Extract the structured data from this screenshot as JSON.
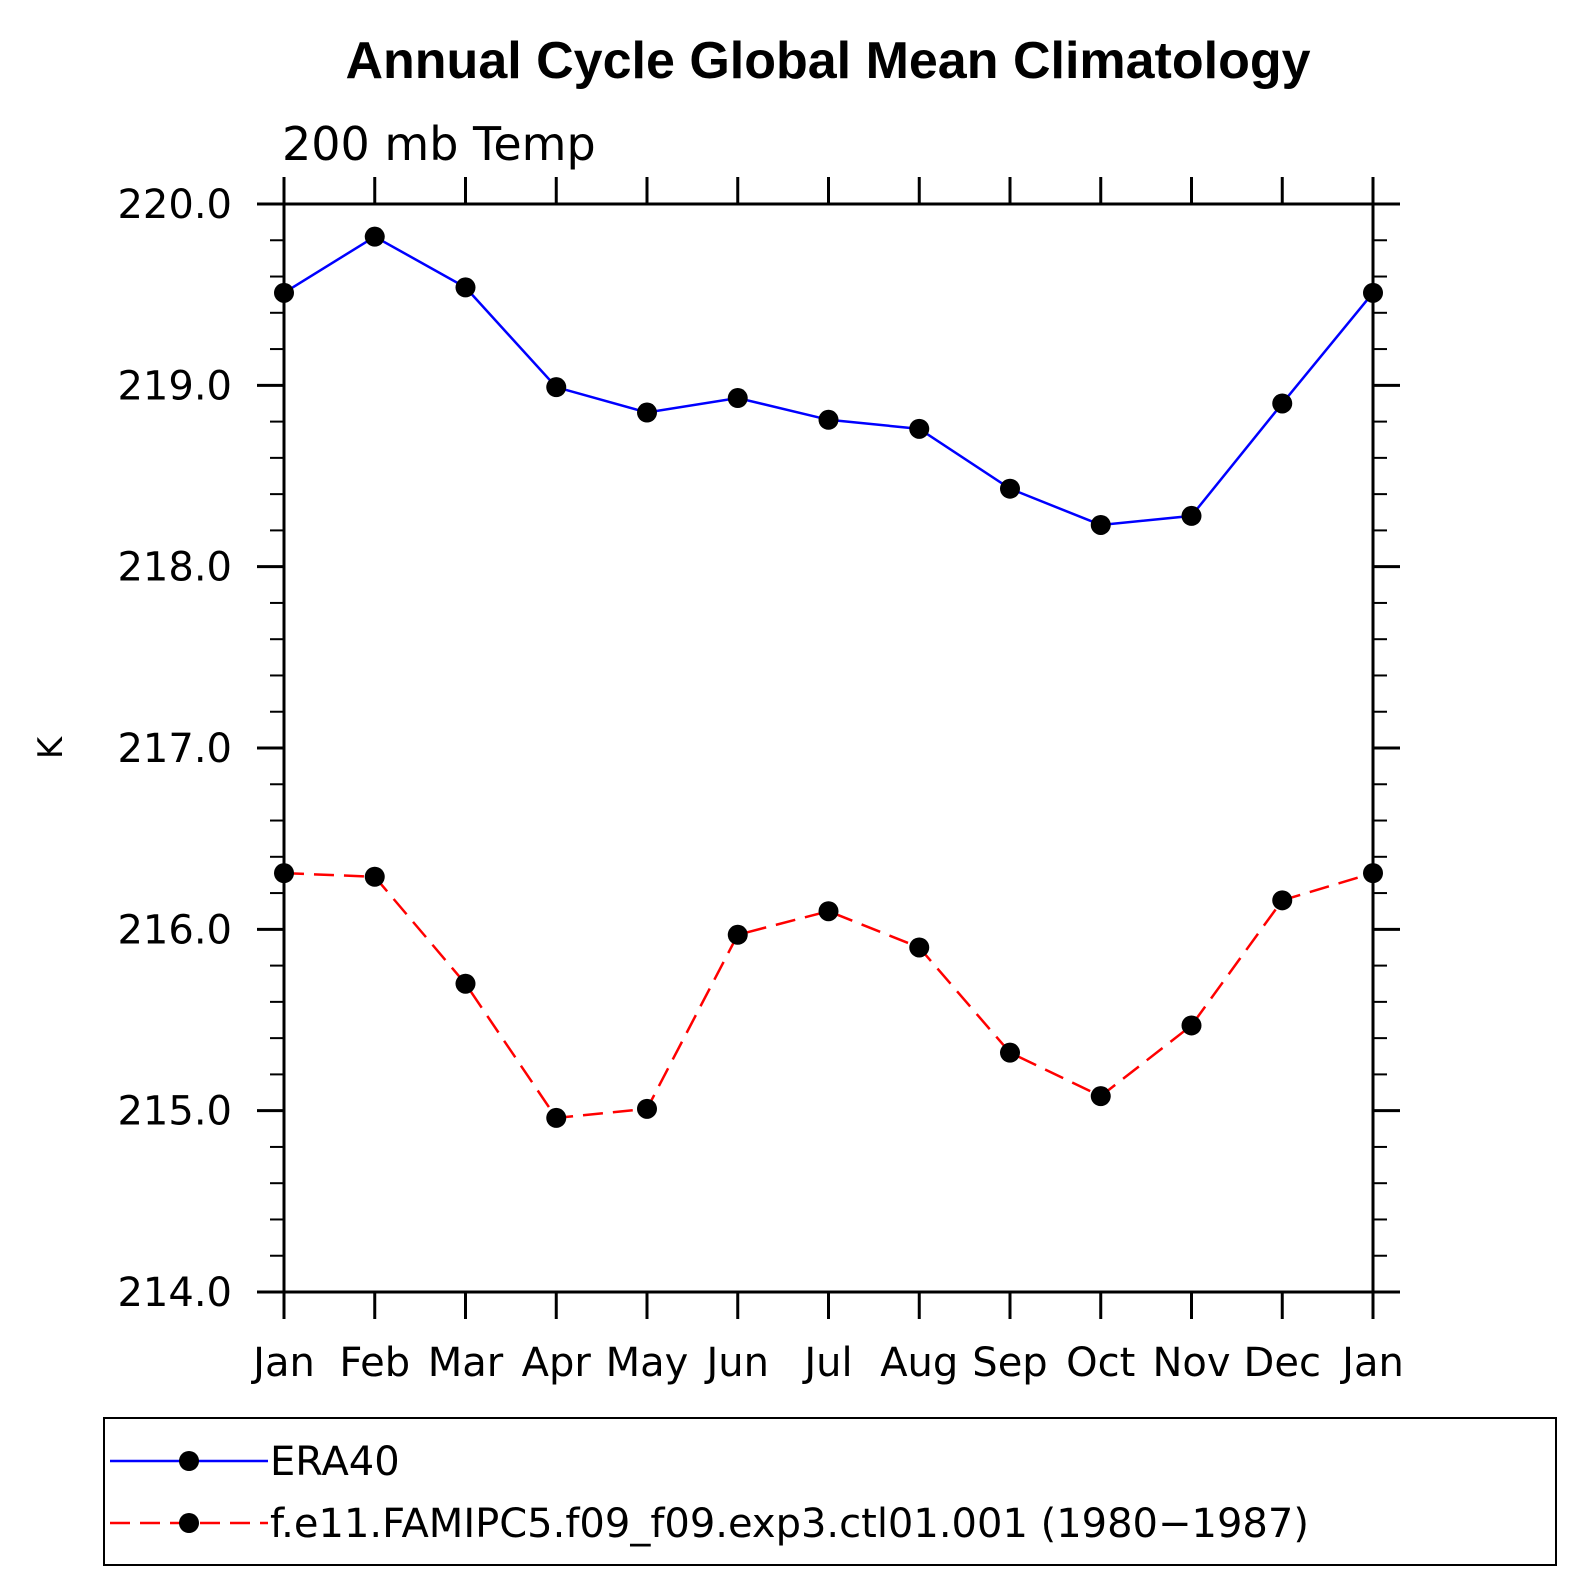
{
  "chart_data": {
    "type": "line",
    "title": "Annual Cycle Global Mean Climatology",
    "subtitle": "200 mb Temp",
    "xlabel": "",
    "ylabel": "K",
    "categories": [
      "Jan",
      "Feb",
      "Mar",
      "Apr",
      "May",
      "Jun",
      "Jul",
      "Aug",
      "Sep",
      "Oct",
      "Nov",
      "Dec",
      "Jan"
    ],
    "ylim": [
      214.0,
      220.0
    ],
    "yticks": [
      "214.0",
      "215.0",
      "216.0",
      "217.0",
      "218.0",
      "219.0",
      "220.0"
    ],
    "grid": false,
    "legend_position": "bottom",
    "series": [
      {
        "name": "ERA40",
        "color": "#0000ff",
        "line_style": "solid",
        "marker": "filled-circle",
        "values": [
          219.51,
          219.82,
          219.54,
          218.99,
          218.85,
          218.93,
          218.81,
          218.76,
          218.43,
          218.23,
          218.28,
          218.9,
          219.51
        ]
      },
      {
        "name": "f.e11.FAMIPC5.f09_f09.exp3.ctl01.001 (1980−1987)",
        "color": "#ff0000",
        "line_style": "dashed",
        "marker": "filled-circle",
        "values": [
          216.31,
          216.29,
          215.7,
          214.96,
          215.01,
          215.97,
          216.1,
          215.9,
          215.32,
          215.08,
          215.47,
          216.16,
          216.31
        ]
      }
    ]
  }
}
